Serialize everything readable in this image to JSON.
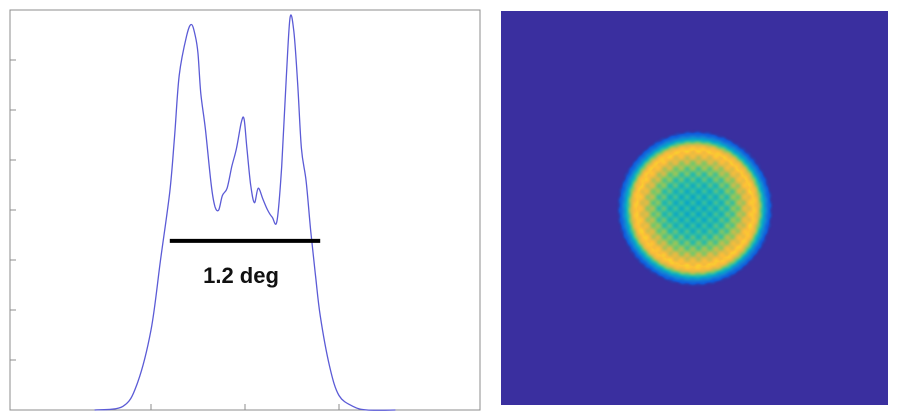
{
  "chart_data": [
    {
      "type": "line",
      "title": "",
      "xlabel": "",
      "ylabel": "",
      "xlim": [
        -2.5,
        2.5
      ],
      "ylim": [
        0,
        1.1
      ],
      "grid": false,
      "legend": "none",
      "line_color": "#5b5bd6",
      "x": [
        -1.6,
        -1.3,
        -1.15,
        -1.0,
        -0.9,
        -0.8,
        -0.75,
        -0.7,
        -0.62,
        -0.57,
        -0.53,
        -0.5,
        -0.47,
        -0.42,
        -0.36,
        -0.32,
        -0.28,
        -0.24,
        -0.19,
        -0.14,
        -0.09,
        -0.04,
        -0.01,
        0.02,
        0.06,
        0.1,
        0.14,
        0.19,
        0.24,
        0.29,
        0.34,
        0.39,
        0.44,
        0.48,
        0.52,
        0.56,
        0.6,
        0.65,
        0.7,
        0.75,
        0.8,
        0.9,
        1.0,
        1.15,
        1.3,
        1.6
      ],
      "y": [
        0.0,
        0.01,
        0.07,
        0.22,
        0.41,
        0.6,
        0.75,
        0.92,
        1.03,
        1.06,
        1.03,
        0.98,
        0.87,
        0.77,
        0.62,
        0.56,
        0.55,
        0.59,
        0.61,
        0.67,
        0.72,
        0.79,
        0.8,
        0.72,
        0.62,
        0.57,
        0.61,
        0.58,
        0.55,
        0.53,
        0.52,
        0.67,
        0.92,
        1.08,
        1.04,
        0.9,
        0.72,
        0.63,
        0.49,
        0.37,
        0.26,
        0.12,
        0.04,
        0.01,
        0.0,
        0.0
      ],
      "annotation": {
        "text": "1.2 deg",
        "level": 0.465,
        "x_start": -0.8,
        "x_end": 0.8
      }
    },
    {
      "type": "heatmap",
      "title": "",
      "xlabel": "",
      "ylabel": "",
      "colormap": [
        "#352a87",
        "#0f5cdd",
        "#1481d6",
        "#06a4ca",
        "#2ebca5",
        "#81c765",
        "#d3bb4a",
        "#fcbc3a",
        "#f8dd27"
      ],
      "background_color": "#3a2f9f",
      "ring": {
        "center": [
          0.5,
          0.5
        ],
        "outer_edge": 0.2,
        "ring_peak_radius": 0.15,
        "center_level": 0.45,
        "ring_level": 0.92
      }
    }
  ]
}
